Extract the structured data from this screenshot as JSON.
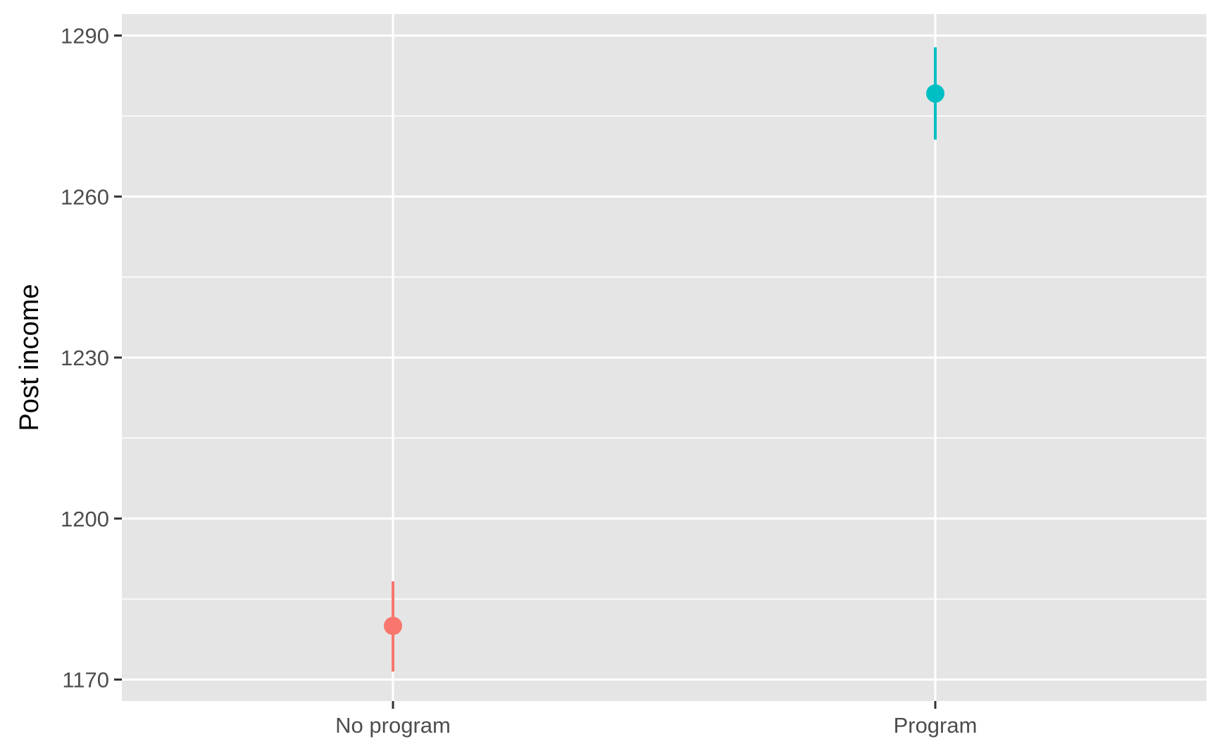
{
  "chart_data": {
    "type": "scatter",
    "title": "",
    "xlabel": "",
    "ylabel": "Post income",
    "categories": [
      "No program",
      "Program"
    ],
    "y_ticks": [
      1170,
      1200,
      1230,
      1260,
      1290
    ],
    "ylim": [
      1166,
      1294
    ],
    "grid": true,
    "legend": "none",
    "points": [
      {
        "category": "No program",
        "y": 1180,
        "ymin": 1171.5,
        "ymax": 1188.3,
        "color": "#f8766d"
      },
      {
        "category": "Program",
        "y": 1279.2,
        "ymin": 1270.6,
        "ymax": 1287.8,
        "color": "#00bfc4"
      }
    ]
  }
}
